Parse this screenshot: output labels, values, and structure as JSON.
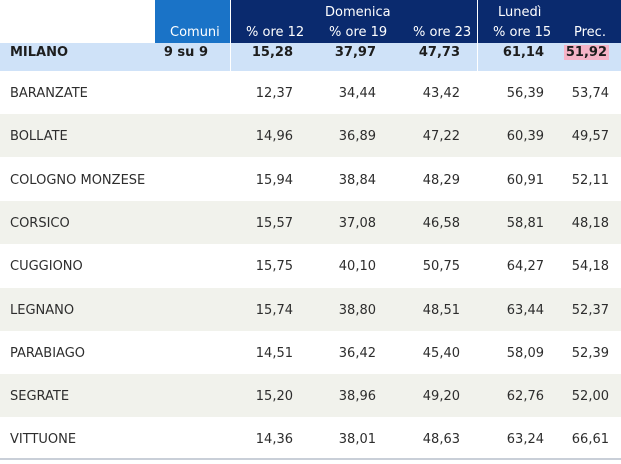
{
  "header": {
    "comuni": "Comuni",
    "domenica": "Domenica",
    "lunedi": "Lunedì",
    "ore12": "% ore 12",
    "ore19": "% ore 19",
    "ore23": "% ore 23",
    "ore15": "% ore 15",
    "prec": "Prec."
  },
  "milano": {
    "name": "MILANO",
    "comuni": "9 su 9",
    "ore12": "15,28",
    "ore19": "37,97",
    "ore23": "47,73",
    "ore15": "61,14",
    "prec": "51,92"
  },
  "rows": [
    {
      "name": "BARANZATE",
      "ore12": "12,37",
      "ore19": "34,44",
      "ore23": "43,42",
      "ore15": "56,39",
      "prec": "53,74"
    },
    {
      "name": "BOLLATE",
      "ore12": "14,96",
      "ore19": "36,89",
      "ore23": "47,22",
      "ore15": "60,39",
      "prec": "49,57"
    },
    {
      "name": "COLOGNO MONZESE",
      "ore12": "15,94",
      "ore19": "38,84",
      "ore23": "48,29",
      "ore15": "60,91",
      "prec": "52,11"
    },
    {
      "name": "CORSICO",
      "ore12": "15,57",
      "ore19": "37,08",
      "ore23": "46,58",
      "ore15": "58,81",
      "prec": "48,18"
    },
    {
      "name": "CUGGIONO",
      "ore12": "15,75",
      "ore19": "40,10",
      "ore23": "50,75",
      "ore15": "64,27",
      "prec": "54,18"
    },
    {
      "name": "LEGNANO",
      "ore12": "15,74",
      "ore19": "38,80",
      "ore23": "48,51",
      "ore15": "63,44",
      "prec": "52,37"
    },
    {
      "name": "PARABIAGO",
      "ore12": "14,51",
      "ore19": "36,42",
      "ore23": "45,40",
      "ore15": "58,09",
      "prec": "52,39"
    },
    {
      "name": "SEGRATE",
      "ore12": "15,20",
      "ore19": "38,96",
      "ore23": "49,20",
      "ore15": "62,76",
      "prec": "52,00"
    },
    {
      "name": "VITTUONE",
      "ore12": "14,36",
      "ore19": "38,01",
      "ore23": "48,63",
      "ore15": "63,24",
      "prec": "66,61"
    }
  ]
}
